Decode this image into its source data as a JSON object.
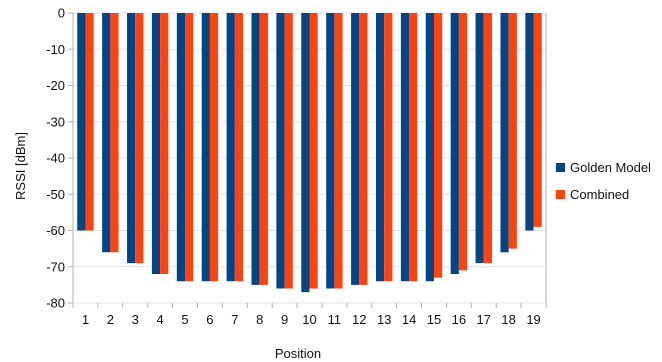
{
  "chart_data": {
    "type": "bar",
    "xlabel": "Position",
    "ylabel": "RSSI [dBm]",
    "ylim": [
      -80,
      0
    ],
    "yticks": [
      0,
      -10,
      -20,
      -30,
      -40,
      -50,
      -60,
      -70,
      -80
    ],
    "categories": [
      "1",
      "2",
      "3",
      "4",
      "5",
      "6",
      "7",
      "8",
      "9",
      "10",
      "11",
      "12",
      "13",
      "14",
      "15",
      "16",
      "17",
      "18",
      "19"
    ],
    "series": [
      {
        "name": "Golden Model",
        "color": "#004586",
        "values": [
          -60,
          -66,
          -69,
          -72,
          -74,
          -74,
          -74,
          -75,
          -76,
          -77,
          -76,
          -75,
          -74,
          -74,
          -74,
          -72,
          -69,
          -66,
          -60
        ]
      },
      {
        "name": "Combined",
        "color": "#ff420e",
        "values": [
          -60,
          -66,
          -69,
          -72,
          -74,
          -74,
          -74,
          -75,
          -76,
          -76,
          -76,
          -75,
          -74,
          -74,
          -73,
          -71,
          -69,
          -65,
          -59
        ]
      }
    ],
    "grid": "horizontal",
    "legend_position": "right"
  }
}
